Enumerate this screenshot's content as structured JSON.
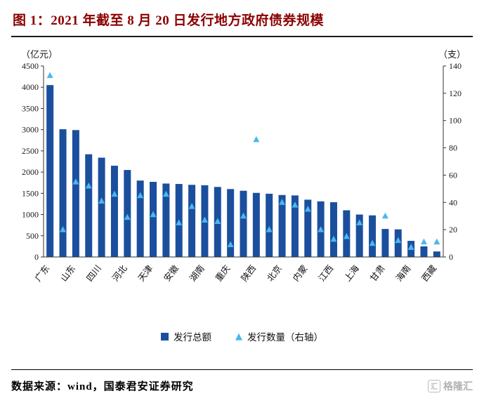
{
  "title": "图 1：2021 年截至 8 月 20 日发行地方政府债券规模",
  "chart_data": {
    "type": "bar",
    "title": "图 1：2021 年截至 8 月 20 日发行地方政府债券规模",
    "left_axis_label": "（亿元）",
    "right_axis_label": "（支）",
    "left_ylim": [
      0,
      4500
    ],
    "right_ylim": [
      0,
      140
    ],
    "left_ticks": [
      0,
      500,
      1000,
      1500,
      2000,
      2500,
      3000,
      3500,
      4000,
      4500
    ],
    "right_ticks": [
      0,
      20,
      40,
      60,
      80,
      100,
      120,
      140
    ],
    "grid": false,
    "legend_position": "bottom",
    "categories": [
      "广东",
      "",
      "山东",
      "",
      "四川",
      "",
      "河北",
      "",
      "天津",
      "",
      "安徽",
      "",
      "湖南",
      "",
      "重庆",
      "",
      "陕西",
      "",
      "北京",
      "",
      "内蒙",
      "",
      "江西",
      "",
      "上海",
      "",
      "甘肃",
      "",
      "海南",
      "",
      "西藏"
    ],
    "series": [
      {
        "name": "发行总额",
        "type": "bar",
        "axis": "left",
        "color": "#1b4f9e",
        "values": [
          4050,
          3010,
          2990,
          2420,
          2340,
          2150,
          2050,
          1800,
          1770,
          1730,
          1720,
          1700,
          1690,
          1650,
          1600,
          1560,
          1510,
          1490,
          1460,
          1450,
          1350,
          1310,
          1290,
          1100,
          1000,
          980,
          660,
          650,
          380,
          250,
          130
        ]
      },
      {
        "name": "发行数量（右轴）",
        "type": "triangle",
        "axis": "right",
        "color": "#49b8ee",
        "values": [
          133,
          20,
          55,
          52,
          41,
          46,
          29,
          45,
          31,
          46,
          25,
          37,
          27,
          26,
          9,
          30,
          86,
          20,
          40,
          38,
          35,
          20,
          13,
          15,
          25,
          10,
          30,
          12,
          7,
          11,
          11
        ]
      }
    ]
  },
  "footer": {
    "source": "数据来源：wind，国泰君安证券研究",
    "logo_text": "格隆汇",
    "logo_icon": "汇"
  }
}
